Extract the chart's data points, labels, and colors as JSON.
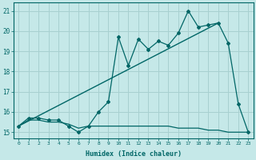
{
  "xlabel": "Humidex (Indice chaleur)",
  "background_color": "#c5e8e8",
  "grid_color": "#a8d0d0",
  "line_color": "#006666",
  "xlim": [
    -0.5,
    23.5
  ],
  "ylim": [
    14.7,
    21.4
  ],
  "yticks": [
    15,
    16,
    17,
    18,
    19,
    20,
    21
  ],
  "xticks": [
    0,
    1,
    2,
    3,
    4,
    5,
    6,
    7,
    8,
    9,
    10,
    11,
    12,
    13,
    14,
    15,
    16,
    17,
    18,
    19,
    20,
    21,
    22,
    23
  ],
  "series1_x": [
    0,
    1,
    2,
    3,
    4,
    5,
    6,
    7,
    8,
    9,
    10,
    11,
    12,
    13,
    14,
    15,
    16,
    17,
    18,
    19,
    20,
    21,
    22,
    23
  ],
  "series1_y": [
    15.3,
    15.7,
    15.7,
    15.6,
    15.6,
    15.3,
    15.0,
    15.3,
    16.0,
    16.5,
    19.7,
    18.3,
    19.6,
    19.1,
    19.5,
    19.3,
    19.9,
    21.0,
    20.2,
    20.3,
    20.4,
    19.4,
    16.4,
    15.0
  ],
  "series2_x": [
    0,
    1,
    2,
    3,
    4,
    5,
    6,
    7,
    8,
    9,
    10,
    11,
    12,
    13,
    14,
    15,
    16,
    17,
    18,
    19,
    20,
    21,
    22,
    23
  ],
  "series2_y": [
    15.3,
    15.6,
    15.6,
    15.5,
    15.5,
    15.4,
    15.2,
    15.3,
    15.3,
    15.3,
    15.3,
    15.3,
    15.3,
    15.3,
    15.3,
    15.3,
    15.2,
    15.2,
    15.2,
    15.1,
    15.1,
    15.0,
    15.0,
    15.0
  ],
  "trend_x": [
    0,
    20
  ],
  "trend_y": [
    15.3,
    20.4
  ]
}
